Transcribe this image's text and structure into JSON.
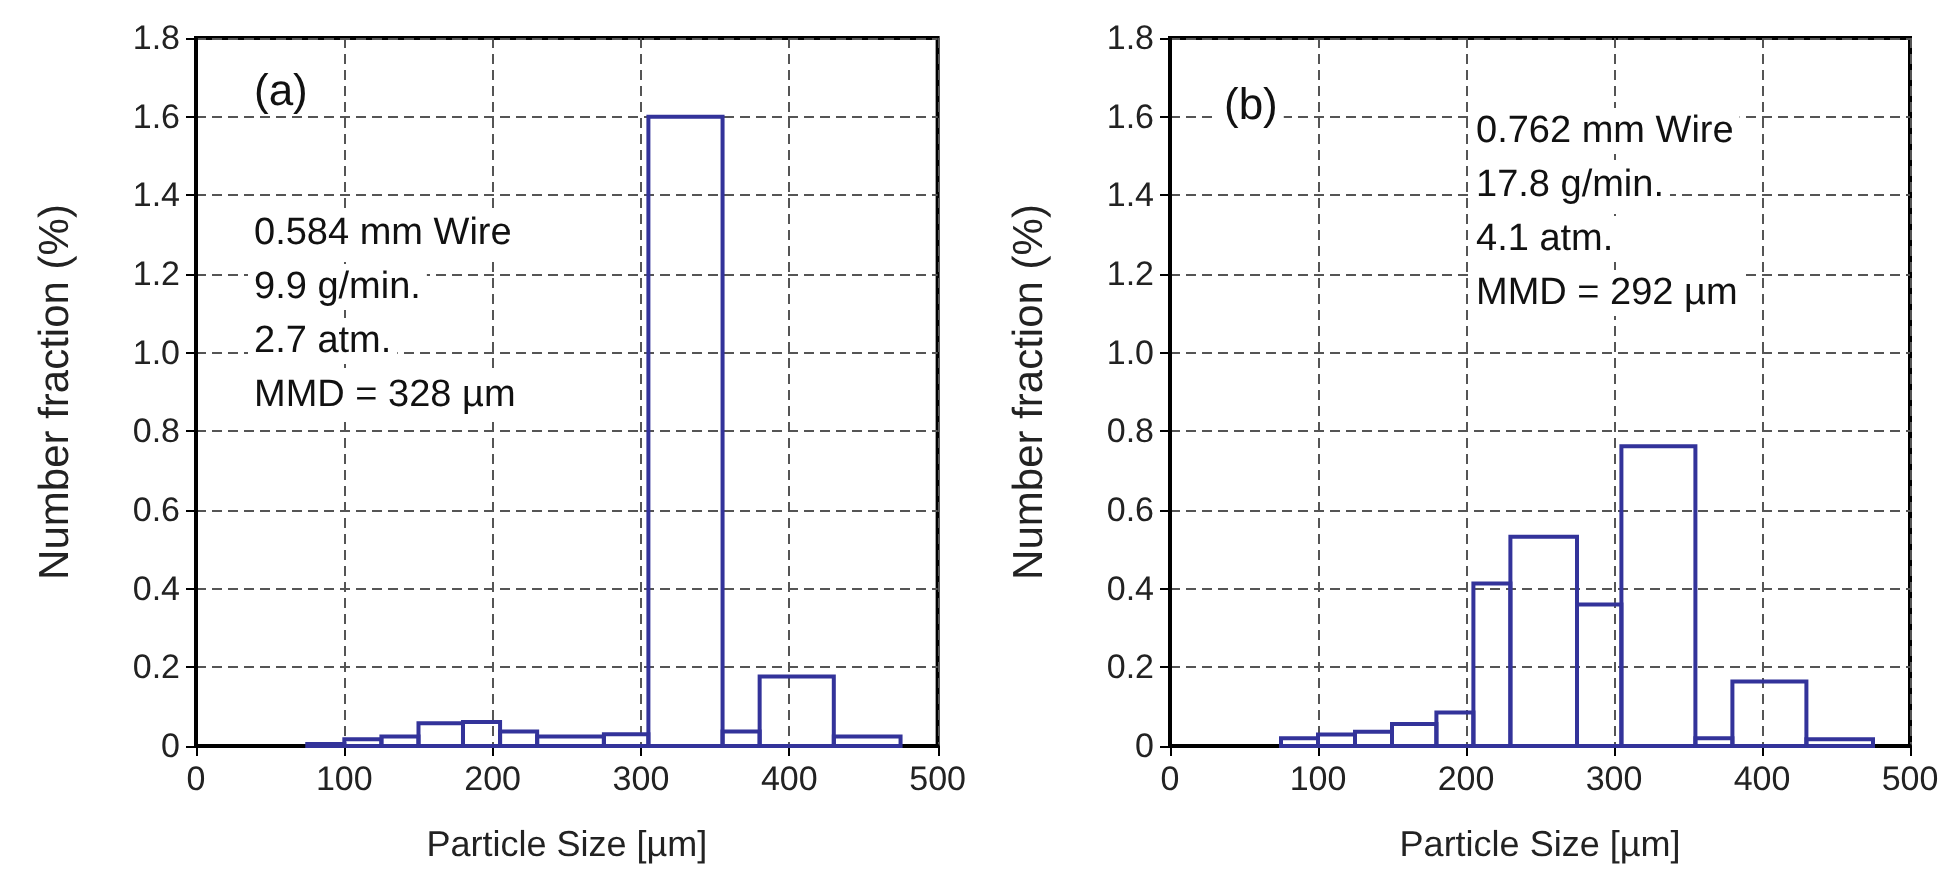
{
  "chart_data": [
    {
      "type": "histogram",
      "xlabel": "Particle Size [µm]",
      "ylabel": "Number fraction (%)",
      "annotations": [
        "(a)",
        "0.584 mm Wire",
        "9.9 g/min.",
        "2.7 atm.",
        "MMD = 328 µm"
      ],
      "bins": [
        75,
        100,
        125,
        150,
        180,
        205,
        230,
        275,
        305,
        355,
        380,
        430,
        475
      ],
      "values": [
        0.005,
        0.017,
        0.024,
        0.058,
        0.061,
        0.037,
        0.024,
        0.03,
        1.6,
        0.037,
        0.177,
        0.024
      ],
      "color": "#33339a",
      "xlim": [
        0,
        500
      ],
      "xticks": [
        0,
        100,
        200,
        300,
        400,
        500
      ],
      "ylim": [
        0,
        1.8
      ],
      "yticks": [
        0,
        0.2,
        0.4,
        0.6,
        0.8,
        {
          "value": 1,
          "label": "1.0"
        },
        1.2,
        1.4,
        1.6,
        1.8
      ],
      "grid": true
    },
    {
      "type": "histogram",
      "xlabel": "Particle Size [µm]",
      "ylabel": "Number fraction (%)",
      "annotations": [
        "(b)",
        "0.762 mm Wire",
        "17.8 g/min.",
        "4.1 atm.",
        "MMD = 292 µm"
      ],
      "bins": [
        75,
        100,
        125,
        150,
        180,
        205,
        230,
        275,
        305,
        355,
        380,
        430,
        475
      ],
      "values": [
        0.02,
        0.029,
        0.036,
        0.056,
        0.085,
        0.413,
        0.532,
        0.36,
        0.762,
        0.02,
        0.164,
        0.017
      ],
      "color": "#33339a",
      "xlim": [
        0,
        500
      ],
      "xticks": [
        0,
        100,
        200,
        300,
        400,
        500
      ],
      "ylim": [
        0,
        1.8
      ],
      "yticks": [
        0,
        0.2,
        0.4,
        0.6,
        0.8,
        {
          "value": 1,
          "label": "1.0"
        },
        1.2,
        1.4,
        1.6,
        1.8
      ],
      "grid": true
    }
  ]
}
